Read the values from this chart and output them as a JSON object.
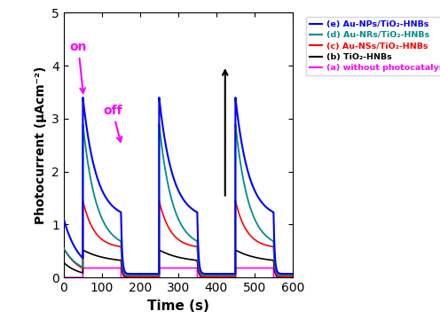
{
  "xlabel": "Time (s)",
  "ylabel": "Photocurrent (μAcm⁻²)",
  "xlim": [
    0,
    600
  ],
  "ylim": [
    0,
    5
  ],
  "yticks": [
    0,
    1,
    2,
    3,
    4,
    5
  ],
  "xticks": [
    0,
    100,
    200,
    300,
    400,
    500,
    600
  ],
  "on_times": [
    50,
    250,
    450
  ],
  "off_times": [
    150,
    350,
    550
  ],
  "colors": {
    "blue": "#0000FF",
    "teal": "#008B8B",
    "red": "#FF0000",
    "black": "#000000",
    "magenta": "#FF00FF"
  },
  "legend": [
    {
      "label": "(e) Au-NPs/TiO₂-HNBs",
      "color": "#0000FF"
    },
    {
      "label": "(d) Au-NRs/TiO₂-HNBs",
      "color": "#008B8B"
    },
    {
      "label": "(c) Au-NSs/TiO₂-HNBs",
      "color": "#FF0000"
    },
    {
      "label": "(b) TiO₂-HNBs",
      "color": "#000000"
    },
    {
      "label": "(a) without photocatalyst",
      "color": "#FF00FF"
    }
  ],
  "on_label": "on",
  "off_label": "off",
  "annotation_color": "#FF00FF",
  "traces": {
    "e": {
      "peak": 3.4,
      "steady": 1.1,
      "base": 0.07,
      "decay_tau": 35,
      "off_tau": 3,
      "pre": 1.1
    },
    "d": {
      "peak": 2.9,
      "steady": 0.55,
      "base": 0.05,
      "decay_tau": 35,
      "off_tau": 3,
      "pre": 0.55
    },
    "c": {
      "peak": 1.45,
      "steady": 0.55,
      "base": 0.02,
      "decay_tau": 30,
      "off_tau": 3,
      "pre": 0.55
    },
    "b": {
      "peak": 0.52,
      "steady": 0.28,
      "base": 0.01,
      "decay_tau": 60,
      "off_tau": 3,
      "pre": 0.28
    },
    "a": {
      "amplitude": 0.18
    }
  }
}
